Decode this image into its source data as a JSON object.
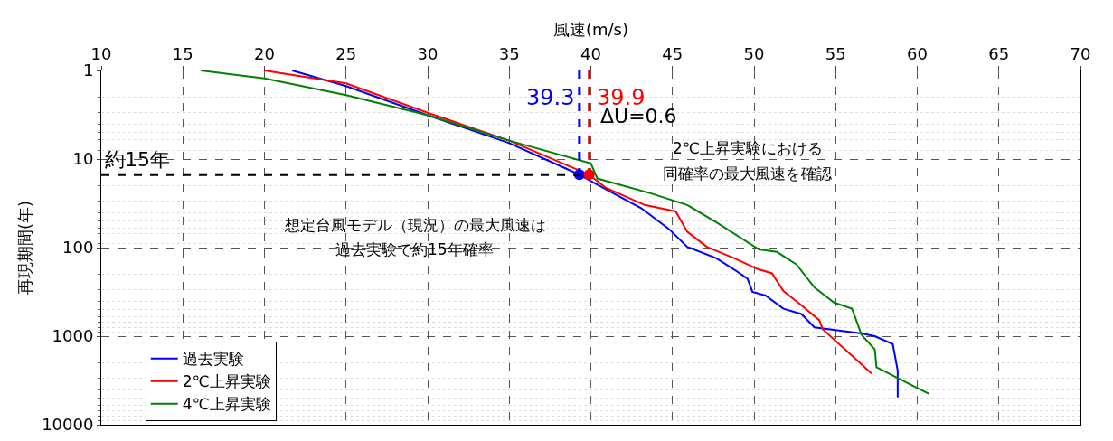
{
  "chart_data": {
    "type": "line",
    "xlabel": "風速(m/s)",
    "ylabel": "再現期間(年)",
    "xlim": [
      10,
      70
    ],
    "xticks": [
      10,
      15,
      20,
      25,
      30,
      35,
      40,
      45,
      50,
      55,
      60,
      65,
      70
    ],
    "ylim": [
      10000,
      1
    ],
    "yticks": [
      1,
      10,
      100,
      1000,
      10000
    ],
    "log": "y",
    "grid": true,
    "legend": "bottom left",
    "marker": "none",
    "line_style": "solid",
    "series": [
      {
        "name": "過去実験",
        "color": "#0000ff",
        "x": [
          21.7,
          25,
          30,
          35,
          39.3,
          40.4,
          43.1,
          44.8,
          45.9,
          47.7,
          48.8,
          49.6,
          49.9,
          50.7,
          51.8,
          52.9,
          53.7,
          56.6,
          57.4,
          58.5,
          58.8,
          58.8
        ],
        "values": [
          1,
          1.5,
          3.2,
          6.6,
          15,
          19.5,
          36,
          62,
          98,
          132,
          178,
          224,
          316,
          347,
          490,
          562,
          794,
          933,
          1000,
          1230,
          2450,
          4900
        ]
      },
      {
        "name": "2℃上昇実験",
        "color": "#ff0000",
        "x": [
          20,
          25,
          30,
          35,
          39.9,
          40.9,
          43.3,
          45.2,
          45.9,
          47.1,
          48.8,
          50.2,
          51.1,
          51.8,
          52.9,
          54.0,
          54.2,
          57.2
        ],
        "values": [
          1,
          1.4,
          3.0,
          6.2,
          15,
          21,
          33,
          39,
          66,
          98,
          132,
          174,
          195,
          309,
          447,
          661,
          832,
          2630
        ]
      },
      {
        "name": "4℃上昇実験",
        "color": "#008000",
        "x": [
          16.1,
          20,
          25,
          30,
          35,
          40,
          40.4,
          43.7,
          45.9,
          47.7,
          50.3,
          51.4,
          52.6,
          53.7,
          54.9,
          56.0,
          56.6,
          57.4,
          57.5,
          60.7
        ],
        "values": [
          1,
          1.23,
          1.9,
          3.2,
          6.2,
          11.2,
          16.6,
          24.5,
          33,
          52,
          105,
          112,
          155,
          282,
          417,
          490,
          977,
          1410,
          2240,
          4470
        ]
      },
      {
        "type": "scatter",
        "color": "#0000ff",
        "marker": "circle",
        "x": [
          39.3
        ],
        "values": [
          15
        ]
      },
      {
        "type": "scatter",
        "color": "#ff0000",
        "marker": "circle",
        "x": [
          39.9
        ],
        "values": [
          15
        ]
      }
    ],
    "ref_lines": [
      {
        "axis": "x",
        "value": 39.3,
        "label": "39.3",
        "color": "#0000ff",
        "line_style": "dashed"
      },
      {
        "axis": "x",
        "value": 39.9,
        "label": "39.9",
        "color": "#ff0000",
        "line_style": "dashed"
      },
      {
        "axis": "y",
        "value": 15,
        "label": "約15年",
        "color": "#000000",
        "line_style": "dashed"
      }
    ],
    "annotations": [
      "ΔU=0.6",
      "想定台風モデル（現況）の最大風速は",
      "過去実験で約15年確率",
      "2℃上昇実験における",
      "同確率の最大風速を確認"
    ]
  }
}
